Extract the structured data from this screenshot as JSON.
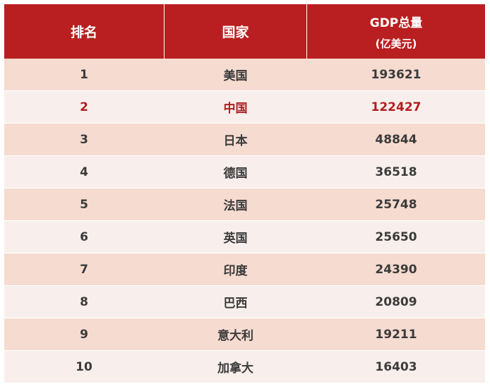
{
  "table": {
    "headers": {
      "rank": "排名",
      "country": "国家",
      "gdp_line1": "GDP总量",
      "gdp_line2": "(亿美元)"
    },
    "rows": [
      {
        "rank": "1",
        "country": "美国",
        "gdp": "193621",
        "highlight": false
      },
      {
        "rank": "2",
        "country": "中国",
        "gdp": "122427",
        "highlight": true
      },
      {
        "rank": "3",
        "country": "日本",
        "gdp": "48844",
        "highlight": false
      },
      {
        "rank": "4",
        "country": "德国",
        "gdp": "36518",
        "highlight": false
      },
      {
        "rank": "5",
        "country": "法国",
        "gdp": "25748",
        "highlight": false
      },
      {
        "rank": "6",
        "country": "英国",
        "gdp": "25650",
        "highlight": false
      },
      {
        "rank": "7",
        "country": "印度",
        "gdp": "24390",
        "highlight": false
      },
      {
        "rank": "8",
        "country": "巴西",
        "gdp": "20809",
        "highlight": false
      },
      {
        "rank": "9",
        "country": "意大利",
        "gdp": "19211",
        "highlight": false
      },
      {
        "rank": "10",
        "country": "加拿大",
        "gdp": "16403",
        "highlight": false
      }
    ]
  },
  "colors": {
    "header_bg": "#b91f20",
    "row_odd": "#f6dbd0",
    "row_even": "#f8efec",
    "highlight_text": "#b01f21",
    "body_text": "#3b3b3b"
  }
}
